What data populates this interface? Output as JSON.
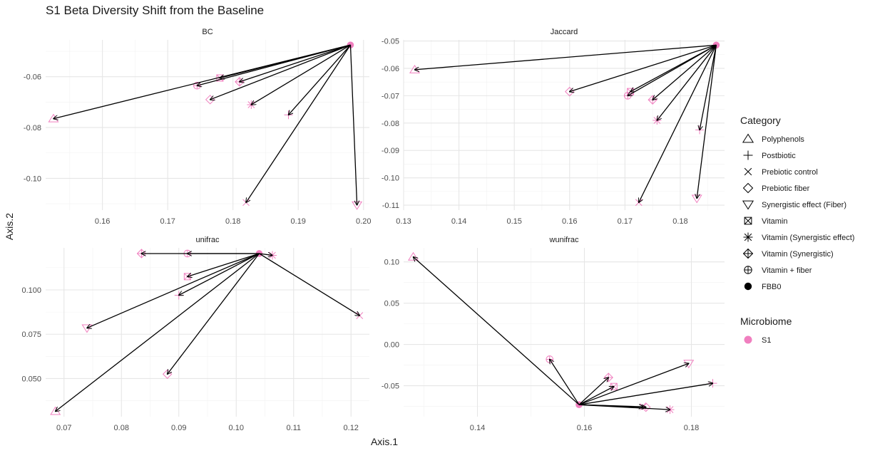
{
  "chart_data": {
    "type": "scatter",
    "title": "S1 Beta Diversity Shift from the Baseline",
    "xlabel": "Axis.1",
    "ylabel": "Axis.2",
    "grid": true,
    "legend_placement": "right",
    "point_color": "#f07fbf",
    "arrow_color": "#000000",
    "legend": {
      "category_title": "Category",
      "categories": [
        {
          "label": "Polyphenols",
          "shape": "triangle"
        },
        {
          "label": "Postbiotic",
          "shape": "plus"
        },
        {
          "label": "Prebiotic control",
          "shape": "cross"
        },
        {
          "label": "Prebiotic fiber",
          "shape": "diamond"
        },
        {
          "label": "Synergistic effect (Fiber)",
          "shape": "triangle-down"
        },
        {
          "label": "Vitamin",
          "shape": "square-cross"
        },
        {
          "label": "Vitamin (Synergistic effect)",
          "shape": "asterisk"
        },
        {
          "label": "Vitamin (Synergistic)",
          "shape": "diamond-plus"
        },
        {
          "label": "Vitamin + fiber",
          "shape": "circle-plus"
        },
        {
          "label": "FBB0",
          "shape": "filled-circle"
        }
      ],
      "microbiome_title": "Microbiome",
      "microbiome": [
        {
          "label": "S1",
          "color": "#f07fbf"
        }
      ]
    },
    "panels": [
      {
        "name": "BC",
        "xticks": [
          0.16,
          0.17,
          0.18,
          0.19,
          0.2
        ],
        "xtick_labels": [
          "0.16",
          "0.17",
          "0.18",
          "0.19",
          "0.20"
        ],
        "yticks": [
          -0.06,
          -0.08,
          -0.1
        ],
        "ytick_labels": [
          "-0.06",
          "-0.08",
          "-0.10"
        ],
        "baseline": {
          "x": 0.198,
          "y": -0.0475
        },
        "points": [
          {
            "category": "Polyphenols",
            "x": 0.1525,
            "y": -0.0765
          },
          {
            "category": "Vitamin + fiber",
            "x": 0.1745,
            "y": -0.0635
          },
          {
            "category": "Vitamin",
            "x": 0.178,
            "y": -0.0605
          },
          {
            "category": "Prebiotic fiber",
            "x": 0.1765,
            "y": -0.069
          },
          {
            "category": "Vitamin (Synergistic)",
            "x": 0.181,
            "y": -0.062
          },
          {
            "category": "Vitamin (Synergistic effect)",
            "x": 0.1828,
            "y": -0.071
          },
          {
            "category": "Postbiotic",
            "x": 0.1885,
            "y": -0.075
          },
          {
            "category": "Prebiotic control",
            "x": 0.182,
            "y": -0.1095
          },
          {
            "category": "Synergistic effect (Fiber)",
            "x": 0.199,
            "y": -0.1105
          }
        ]
      },
      {
        "name": "Jaccard",
        "xticks": [
          0.13,
          0.14,
          0.15,
          0.16,
          0.17,
          0.18
        ],
        "xtick_labels": [
          "0.13",
          "0.14",
          "0.15",
          "0.16",
          "0.17",
          "0.18"
        ],
        "yticks": [
          -0.05,
          -0.06,
          -0.07,
          -0.08,
          -0.09,
          -0.1,
          -0.11
        ],
        "ytick_labels": [
          "-0.05",
          "-0.06",
          "-0.07",
          "-0.08",
          "-0.09",
          "-0.10",
          "-0.11"
        ],
        "baseline": {
          "x": 0.1865,
          "y": -0.0515
        },
        "points": [
          {
            "category": "Polyphenols",
            "x": 0.132,
            "y": -0.0605
          },
          {
            "category": "Prebiotic fiber",
            "x": 0.16,
            "y": -0.0685
          },
          {
            "category": "Vitamin",
            "x": 0.171,
            "y": -0.0685
          },
          {
            "category": "Vitamin + fiber",
            "x": 0.1705,
            "y": -0.07
          },
          {
            "category": "Vitamin (Synergistic)",
            "x": 0.175,
            "y": -0.0715
          },
          {
            "category": "Vitamin (Synergistic effect)",
            "x": 0.1758,
            "y": -0.079
          },
          {
            "category": "Postbiotic",
            "x": 0.1835,
            "y": -0.0825
          },
          {
            "category": "Synergistic effect (Fiber)",
            "x": 0.183,
            "y": -0.1075
          },
          {
            "category": "Prebiotic control",
            "x": 0.1725,
            "y": -0.109
          }
        ]
      },
      {
        "name": "unifrac",
        "xticks": [
          0.07,
          0.08,
          0.09,
          0.1,
          0.11,
          0.12
        ],
        "xtick_labels": [
          "0.07",
          "0.08",
          "0.09",
          "0.10",
          "0.11",
          "0.12"
        ],
        "yticks": [
          0.1,
          0.075,
          0.05
        ],
        "ytick_labels": [
          "0.100",
          "0.075",
          "0.050"
        ],
        "baseline": {
          "x": 0.104,
          "y": 0.1205
        },
        "points": [
          {
            "category": "Vitamin (Synergistic)",
            "x": 0.0835,
            "y": 0.1205
          },
          {
            "category": "Vitamin + fiber",
            "x": 0.0915,
            "y": 0.1205
          },
          {
            "category": "Vitamin (Synergistic effect)",
            "x": 0.1063,
            "y": 0.1195
          },
          {
            "category": "Vitamin",
            "x": 0.0915,
            "y": 0.1075
          },
          {
            "category": "Postbiotic",
            "x": 0.09,
            "y": 0.097
          },
          {
            "category": "Synergistic effect (Fiber)",
            "x": 0.074,
            "y": 0.0785
          },
          {
            "category": "Prebiotic control",
            "x": 0.1215,
            "y": 0.0855
          },
          {
            "category": "Prebiotic fiber",
            "x": 0.088,
            "y": 0.0525
          },
          {
            "category": "Polyphenols",
            "x": 0.0685,
            "y": 0.0315
          }
        ]
      },
      {
        "name": "wunifrac",
        "xticks": [
          0.14,
          0.16,
          0.18
        ],
        "xtick_labels": [
          "0.14",
          "0.16",
          "0.18"
        ],
        "yticks": [
          0.1,
          0.05,
          0.0,
          -0.05
        ],
        "ytick_labels": [
          "0.10",
          "0.05",
          "0.00",
          "-0.05"
        ],
        "baseline": {
          "x": 0.159,
          "y": -0.073
        },
        "points": [
          {
            "category": "Polyphenols",
            "x": 0.128,
            "y": 0.106
          },
          {
            "category": "Vitamin + fiber",
            "x": 0.1535,
            "y": -0.018
          },
          {
            "category": "Vitamin (Synergistic)",
            "x": 0.1645,
            "y": -0.04
          },
          {
            "category": "Vitamin",
            "x": 0.1655,
            "y": -0.051
          },
          {
            "category": "Synergistic effect (Fiber)",
            "x": 0.1795,
            "y": -0.023
          },
          {
            "category": "Postbiotic",
            "x": 0.184,
            "y": -0.047
          },
          {
            "category": "Prebiotic fiber",
            "x": 0.1715,
            "y": -0.076
          },
          {
            "category": "Vitamin (Synergistic effect)",
            "x": 0.176,
            "y": -0.079
          },
          {
            "category": "Prebiotic control",
            "x": 0.171,
            "y": -0.0755
          }
        ]
      }
    ]
  }
}
